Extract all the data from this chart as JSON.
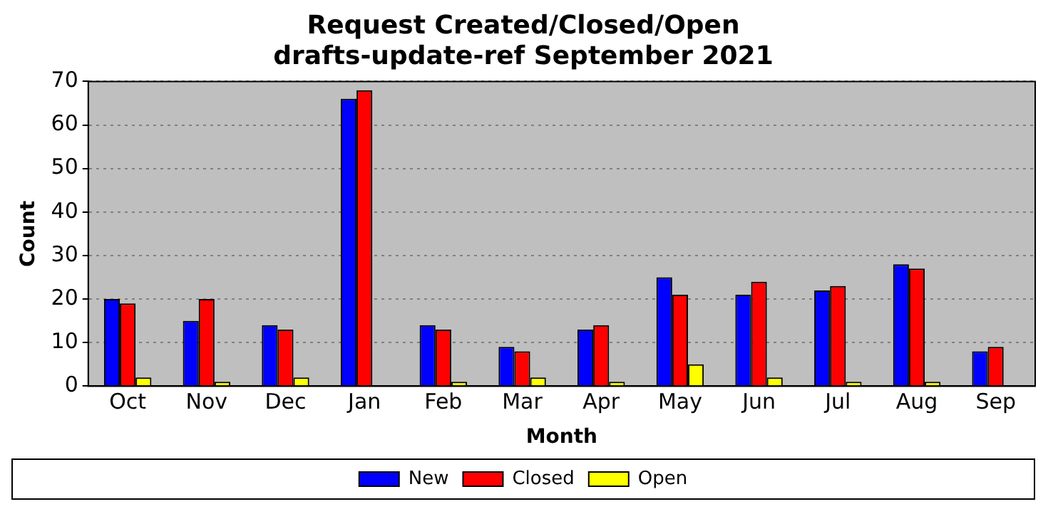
{
  "chart_data": {
    "type": "bar",
    "title": "Request Created/Closed/Open",
    "subtitle": "drafts-update-ref September 2021",
    "xlabel": "Month",
    "ylabel": "Count",
    "categories": [
      "Oct",
      "Nov",
      "Dec",
      "Jan",
      "Feb",
      "Mar",
      "Apr",
      "May",
      "Jun",
      "Jul",
      "Aug",
      "Sep"
    ],
    "series": [
      {
        "name": "New",
        "color": "#0000ff",
        "values": [
          20,
          15,
          14,
          66,
          14,
          9,
          13,
          25,
          21,
          22,
          28,
          8
        ]
      },
      {
        "name": "Closed",
        "color": "#ff0000",
        "values": [
          19,
          20,
          13,
          68,
          13,
          8,
          14,
          21,
          24,
          23,
          27,
          9
        ]
      },
      {
        "name": "Open",
        "color": "#ffff00",
        "values": [
          2,
          1,
          2,
          0,
          1,
          2,
          1,
          5,
          2,
          1,
          1,
          0
        ]
      }
    ],
    "ylim": [
      0,
      70
    ],
    "yticks": [
      0,
      10,
      20,
      30,
      40,
      50,
      60,
      70
    ],
    "grid": "y",
    "legend": "bottom"
  }
}
